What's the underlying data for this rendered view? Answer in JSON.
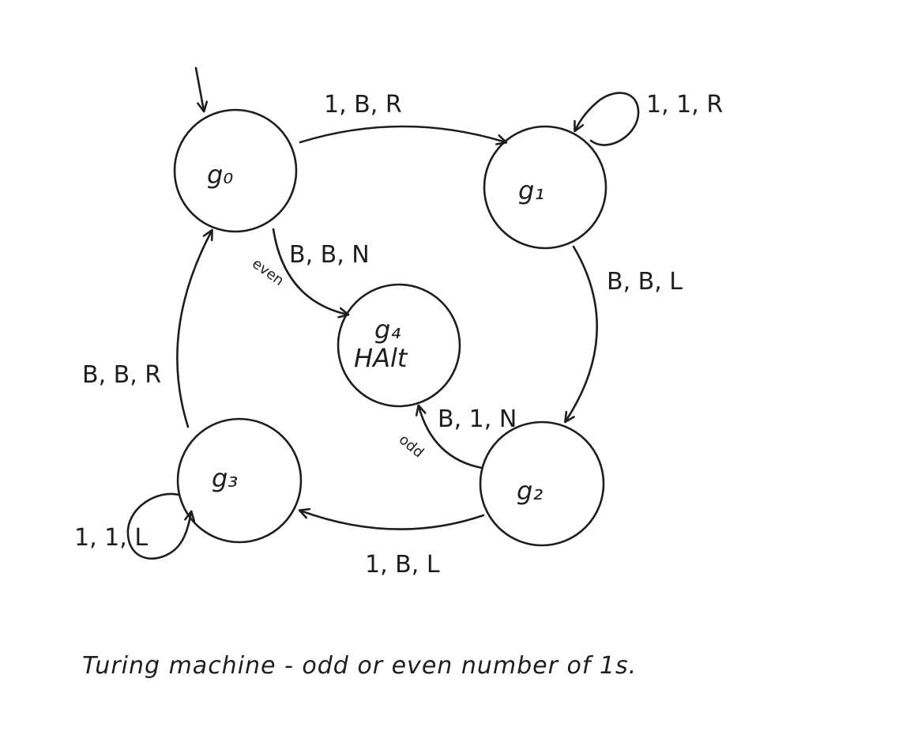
{
  "diagram": {
    "states": {
      "q0": "g₀",
      "q1": "g₁",
      "q2": "g₂",
      "q3": "g₃",
      "q4": "g₄",
      "q4_sub": "HAlt"
    },
    "transitions": {
      "q0_q1": "1, B, R",
      "q1_q1": "1, 1, R",
      "q1_q2": "B, B, L",
      "q2_q3": "1, B, L",
      "q3_q3": "1, 1, L",
      "q3_q0": "B, B, R",
      "q0_q4": "B, B, N",
      "q0_q4_note": "even",
      "q2_q4": "B, 1, N",
      "q2_q4_note": "odd"
    },
    "caption": "Turing machine - odd or even number of 1s."
  }
}
